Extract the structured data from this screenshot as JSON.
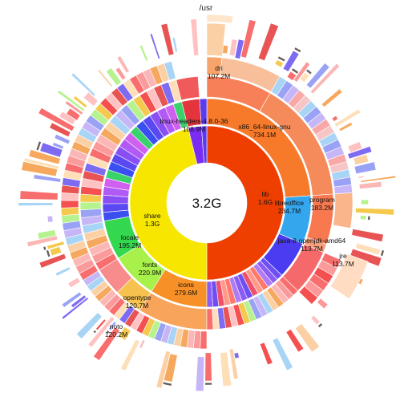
{
  "title": "/usr",
  "total_label": "3.2G",
  "segments": [
    {
      "id": "lib",
      "name": "lib",
      "size": "1.6G",
      "color": "#ee3f00",
      "text_color": "#ffffff"
    },
    {
      "id": "share",
      "name": "share",
      "size": "1.3G",
      "color": "#f6e600",
      "text_color": "#111111"
    },
    {
      "id": "x86",
      "name": "x86_64-linux-gnu",
      "size": "734.1M",
      "color": "#f77a2a",
      "text_color": "#ffffff"
    },
    {
      "id": "libreoffice",
      "name": "libreoffice",
      "size": "234.7M",
      "color": "#33a6ee",
      "text_color": "#111111"
    },
    {
      "id": "program",
      "name": "program",
      "size": "183.2M",
      "color": "#f8784f",
      "text_color": "#111111"
    },
    {
      "id": "java",
      "name": "java-8-openjdk-amd64",
      "size": "113.7M",
      "color": "#4b3cf2",
      "text_color": "#ffffff"
    },
    {
      "id": "jre",
      "name": "jre",
      "size": "113.7M",
      "color": "#f5696b",
      "text_color": "#111111"
    },
    {
      "id": "linuxhdr",
      "name": "linux-headers-4.8.0-36",
      "size": "108.9M",
      "color": "#e4343d",
      "text_color": "#111111"
    },
    {
      "id": "dri",
      "name": "dri",
      "size": "107.2M",
      "color": "#f4a35e",
      "text_color": "#111111"
    },
    {
      "id": "icons",
      "name": "icons",
      "size": "279.6M",
      "color": "#f79127",
      "text_color": "#111111"
    },
    {
      "id": "fonts",
      "name": "fonts",
      "size": "220.9M",
      "color": "#a8f04a",
      "text_color": "#111111"
    },
    {
      "id": "locale",
      "name": "locale",
      "size": "195.2M",
      "color": "#34d84e",
      "text_color": "#111111"
    },
    {
      "id": "opentype",
      "name": "opentype",
      "size": "120.7M",
      "color": "#f7c150",
      "text_color": "#111111"
    },
    {
      "id": "noto",
      "name": "noto",
      "size": "120.2M",
      "color": "#f88b8b",
      "text_color": "#111111"
    }
  ],
  "palette": [
    "#f86e6e",
    "#fa9a9a",
    "#fbb6b6",
    "#f6a85e",
    "#fbd0a5",
    "#a8d4f6",
    "#c6b6f7",
    "#9aa2f5",
    "#b6f28e",
    "#f5c94e",
    "#f45050",
    "#ffc1c1",
    "#e85454",
    "#7d6bf2",
    "#ffdfb8"
  ]
}
